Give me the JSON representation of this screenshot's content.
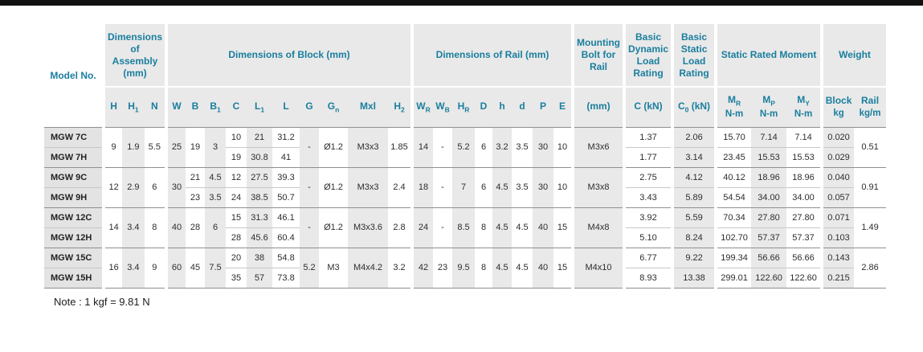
{
  "page": {
    "note": "Note : 1 kgf = 9.81 N"
  },
  "table": {
    "model_header": "Model No.",
    "groups": [
      {
        "label": "Dimensions of Assembly (mm)",
        "span": 3
      },
      {
        "label": "Dimensions of Block (mm)",
        "span": 10
      },
      {
        "label": "Dimensions of Rail (mm)",
        "span": 8
      },
      {
        "label": "Mounting Bolt for Rail",
        "span": 1
      },
      {
        "label": "Basic Dynamic Load Rating",
        "span": 1
      },
      {
        "label": "Basic Static Load Rating",
        "span": 1
      },
      {
        "label": "Static Rated Moment",
        "span": 3
      },
      {
        "label": "Weight",
        "span": 2
      }
    ],
    "columns": [
      {
        "key": "H",
        "parts": [
          [
            "H",
            0
          ]
        ]
      },
      {
        "key": "H1",
        "parts": [
          [
            "H",
            0
          ],
          [
            "1",
            1
          ]
        ]
      },
      {
        "key": "N",
        "parts": [
          [
            "N",
            0
          ]
        ]
      },
      {
        "key": "W",
        "parts": [
          [
            "W",
            0
          ]
        ]
      },
      {
        "key": "B",
        "parts": [
          [
            "B",
            0
          ]
        ]
      },
      {
        "key": "B1",
        "parts": [
          [
            "B",
            0
          ],
          [
            "1",
            1
          ]
        ]
      },
      {
        "key": "C",
        "parts": [
          [
            "C",
            0
          ]
        ]
      },
      {
        "key": "L1",
        "parts": [
          [
            "L",
            0
          ],
          [
            "1",
            1
          ]
        ]
      },
      {
        "key": "L",
        "parts": [
          [
            "L",
            0
          ]
        ]
      },
      {
        "key": "G",
        "parts": [
          [
            "G",
            0
          ]
        ]
      },
      {
        "key": "Gn",
        "parts": [
          [
            "G",
            0
          ],
          [
            "n",
            1
          ]
        ]
      },
      {
        "key": "Mxl",
        "parts": [
          [
            "Mxl",
            0
          ]
        ]
      },
      {
        "key": "H2",
        "parts": [
          [
            "H",
            0
          ],
          [
            "2",
            1
          ]
        ]
      },
      {
        "key": "WR",
        "parts": [
          [
            "W",
            0
          ],
          [
            "R",
            1
          ]
        ]
      },
      {
        "key": "WB",
        "parts": [
          [
            "W",
            0
          ],
          [
            "B",
            1
          ]
        ]
      },
      {
        "key": "HR",
        "parts": [
          [
            "H",
            0
          ],
          [
            "R",
            1
          ]
        ]
      },
      {
        "key": "D",
        "parts": [
          [
            "D",
            0
          ]
        ]
      },
      {
        "key": "h",
        "parts": [
          [
            "h",
            0
          ]
        ]
      },
      {
        "key": "d",
        "parts": [
          [
            "d",
            0
          ]
        ]
      },
      {
        "key": "P",
        "parts": [
          [
            "P",
            0
          ]
        ]
      },
      {
        "key": "E",
        "parts": [
          [
            "E",
            0
          ]
        ]
      },
      {
        "key": "bolt",
        "parts": [
          [
            "(mm)",
            0
          ]
        ]
      },
      {
        "key": "Ck",
        "parts": [
          [
            "C (kN)",
            0
          ]
        ]
      },
      {
        "key": "C0",
        "parts": [
          [
            "C",
            0
          ],
          [
            "0",
            1
          ],
          [
            " (kN)",
            0
          ]
        ]
      },
      {
        "key": "MR",
        "parts": [
          [
            "M",
            0
          ],
          [
            "R",
            1
          ]
        ],
        "unit": "N-m"
      },
      {
        "key": "MP",
        "parts": [
          [
            "M",
            0
          ],
          [
            "P",
            1
          ]
        ],
        "unit": "N-m"
      },
      {
        "key": "MY",
        "parts": [
          [
            "M",
            0
          ],
          [
            "Y",
            1
          ]
        ],
        "unit": "N-m"
      },
      {
        "key": "block",
        "parts": [
          [
            "Block",
            0
          ]
        ],
        "unit": "kg"
      },
      {
        "key": "rail",
        "parts": [
          [
            "Rail",
            0
          ]
        ],
        "unit": "kg/m"
      }
    ],
    "pairs": [
      {
        "models": [
          "MGW 7C",
          "MGW 7H"
        ],
        "values": {
          "H": "9",
          "H1": "1.9",
          "N": "5.5",
          "W": "25",
          "B": "19",
          "B1": "3",
          "C": [
            "10",
            "19"
          ],
          "L1": [
            "21",
            "30.8"
          ],
          "L": [
            "31.2",
            "41"
          ],
          "G": "-",
          "Gn": "Ø1.2",
          "Mxl": "M3x3",
          "H2": "1.85",
          "WR": "14",
          "WB": "-",
          "HR": "5.2",
          "D": "6",
          "h": "3.2",
          "d": "3.5",
          "P": "30",
          "E": "10",
          "bolt": "M3x6",
          "Ck": [
            "1.37",
            "1.77"
          ],
          "C0": [
            "2.06",
            "3.14"
          ],
          "MR": [
            "15.70",
            "23.45"
          ],
          "MP": [
            "7.14",
            "15.53"
          ],
          "MY": [
            "7.14",
            "15.53"
          ],
          "block": [
            "0.020",
            "0.029"
          ],
          "rail": "0.51"
        }
      },
      {
        "models": [
          "MGW 9C",
          "MGW 9H"
        ],
        "values": {
          "H": "12",
          "H1": "2.9",
          "N": "6",
          "W": "30",
          "B": [
            "21",
            "23"
          ],
          "B1": [
            "4.5",
            "3.5"
          ],
          "C": [
            "12",
            "24"
          ],
          "L1": [
            "27.5",
            "38.5"
          ],
          "L": [
            "39.3",
            "50.7"
          ],
          "G": "-",
          "Gn": "Ø1.2",
          "Mxl": "M3x3",
          "H2": "2.4",
          "WR": "18",
          "WB": "-",
          "HR": "7",
          "D": "6",
          "h": "4.5",
          "d": "3.5",
          "P": "30",
          "E": "10",
          "bolt": "M3x8",
          "Ck": [
            "2.75",
            "3.43"
          ],
          "C0": [
            "4.12",
            "5.89"
          ],
          "MR": [
            "40.12",
            "54.54"
          ],
          "MP": [
            "18.96",
            "34.00"
          ],
          "MY": [
            "18.96",
            "34.00"
          ],
          "block": [
            "0.040",
            "0.057"
          ],
          "rail": "0.91"
        }
      },
      {
        "models": [
          "MGW 12C",
          "MGW 12H"
        ],
        "values": {
          "H": "14",
          "H1": "3.4",
          "N": "8",
          "W": "40",
          "B": "28",
          "B1": "6",
          "C": [
            "15",
            "28"
          ],
          "L1": [
            "31.3",
            "45.6"
          ],
          "L": [
            "46.1",
            "60.4"
          ],
          "G": "-",
          "Gn": "Ø1.2",
          "Mxl": "M3x3.6",
          "H2": "2.8",
          "WR": "24",
          "WB": "-",
          "HR": "8.5",
          "D": "8",
          "h": "4.5",
          "d": "4.5",
          "P": "40",
          "E": "15",
          "bolt": "M4x8",
          "Ck": [
            "3.92",
            "5.10"
          ],
          "C0": [
            "5.59",
            "8.24"
          ],
          "MR": [
            "70.34",
            "102.70"
          ],
          "MP": [
            "27.80",
            "57.37"
          ],
          "MY": [
            "27.80",
            "57.37"
          ],
          "block": [
            "0.071",
            "0.103"
          ],
          "rail": "1.49"
        }
      },
      {
        "models": [
          "MGW 15C",
          "MGW 15H"
        ],
        "values": {
          "H": "16",
          "H1": "3.4",
          "N": "9",
          "W": "60",
          "B": "45",
          "B1": "7.5",
          "C": [
            "20",
            "35"
          ],
          "L1": [
            "38",
            "57"
          ],
          "L": [
            "54.8",
            "73.8"
          ],
          "G": "5.2",
          "Gn": "M3",
          "Mxl": "M4x4.2",
          "H2": "3.2",
          "WR": "42",
          "WB": "23",
          "HR": "9.5",
          "D": "8",
          "h": "4.5",
          "d": "4.5",
          "P": "40",
          "E": "15",
          "bolt": "M4x10",
          "Ck": [
            "6.77",
            "8.93"
          ],
          "C0": [
            "9.22",
            "13.38"
          ],
          "MR": [
            "199.34",
            "299.01"
          ],
          "MP": [
            "56.66",
            "122.60"
          ],
          "MY": [
            "56.66",
            "122.60"
          ],
          "block": [
            "0.143",
            "0.215"
          ],
          "rail": "2.86"
        }
      }
    ]
  }
}
